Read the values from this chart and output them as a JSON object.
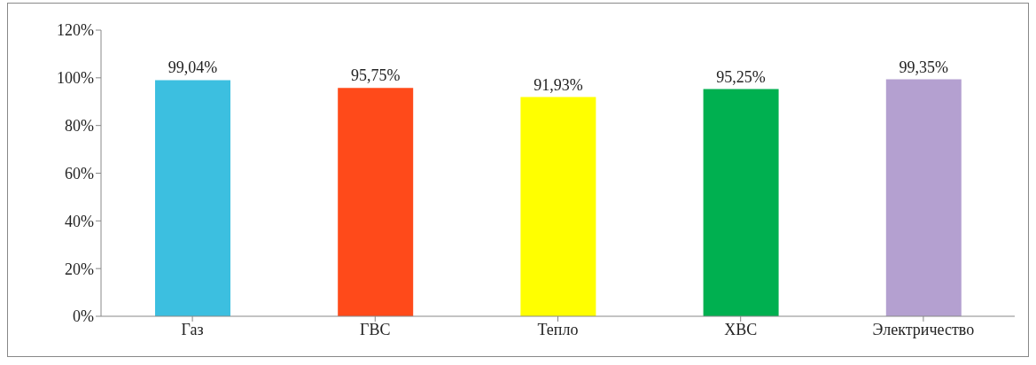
{
  "chart_data": {
    "type": "bar",
    "categories": [
      "Газ",
      "ГВС",
      "Тепло",
      "ХВС",
      "Электричество"
    ],
    "values": [
      99.04,
      95.75,
      91.93,
      95.25,
      99.35
    ],
    "colors": [
      "#3cbfe0",
      "#ff4a1a",
      "#ffff00",
      "#00b050",
      "#b4a0d0"
    ],
    "value_labels": [
      "99,04%",
      "95,75%",
      "91,93%",
      "95,25%",
      "99,35%"
    ],
    "ylim": [
      0,
      120
    ],
    "yticks": [
      {
        "value": 0,
        "label": "0%"
      },
      {
        "value": 20,
        "label": "20%"
      },
      {
        "value": 40,
        "label": "40%"
      },
      {
        "value": 60,
        "label": "60%"
      },
      {
        "value": 80,
        "label": "80%"
      },
      {
        "value": 100,
        "label": "100%"
      },
      {
        "value": 120,
        "label": "120%"
      }
    ]
  }
}
